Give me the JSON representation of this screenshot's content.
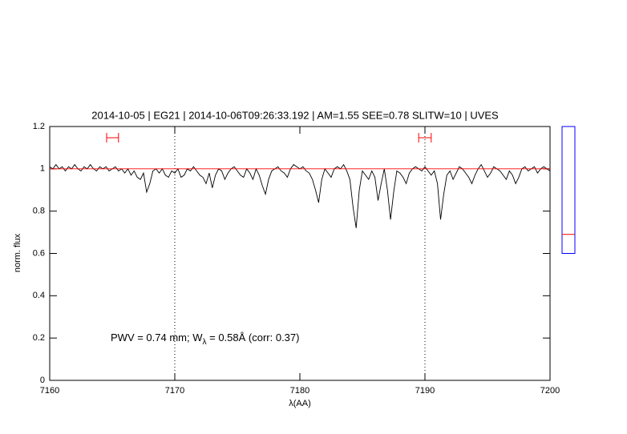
{
  "chart_data": {
    "type": "line",
    "title": "2014-10-05 | EG21 | 2014-10-06T09:26:33.192 | AM=1.55 SEE=0.78 SLITW=10 | UVES",
    "xlabel": "λ(AA)",
    "ylabel": "norm. flux",
    "annotation": [
      "PWV = 0.74 mm; W",
      "λ",
      " = 0.58Å (corr: 0.37)"
    ],
    "annotation_color": "#0000ff",
    "title_color": "#0000ff",
    "xlim": [
      7160,
      7200
    ],
    "ylim": [
      0,
      1.2
    ],
    "xticks": [
      7160,
      7170,
      7180,
      7190,
      7200
    ],
    "yticks": [
      0,
      0.2,
      0.4,
      0.6,
      0.8,
      1,
      1.2
    ],
    "vlines": [
      7170,
      7190
    ],
    "series": [
      {
        "name": "spectrum",
        "color": "#000000",
        "x": [
          7160,
          7160.25,
          7160.5,
          7160.75,
          7161,
          7161.25,
          7161.5,
          7161.75,
          7162,
          7162.25,
          7162.5,
          7162.75,
          7163,
          7163.25,
          7163.5,
          7163.75,
          7164,
          7164.25,
          7164.5,
          7164.75,
          7165,
          7165.25,
          7165.5,
          7165.75,
          7166,
          7166.25,
          7166.5,
          7166.75,
          7167,
          7167.25,
          7167.5,
          7167.75,
          7168,
          7168.25,
          7168.5,
          7168.75,
          7169,
          7169.25,
          7169.5,
          7169.75,
          7170,
          7170.25,
          7170.5,
          7170.75,
          7171,
          7171.25,
          7171.5,
          7171.75,
          7172,
          7172.25,
          7172.5,
          7172.75,
          7173,
          7173.25,
          7173.5,
          7173.75,
          7174,
          7174.25,
          7174.5,
          7174.75,
          7175,
          7175.25,
          7175.5,
          7175.75,
          7176,
          7176.25,
          7176.5,
          7176.75,
          7177,
          7177.25,
          7177.5,
          7177.75,
          7178,
          7178.25,
          7178.5,
          7178.75,
          7179,
          7179.25,
          7179.5,
          7179.75,
          7180,
          7180.25,
          7180.5,
          7180.75,
          7181,
          7181.25,
          7181.5,
          7181.75,
          7182,
          7182.25,
          7182.5,
          7182.75,
          7183,
          7183.25,
          7183.5,
          7183.75,
          7184,
          7184.25,
          7184.5,
          7184.75,
          7185,
          7185.25,
          7185.5,
          7185.75,
          7186,
          7186.25,
          7186.5,
          7186.75,
          7187,
          7187.25,
          7187.5,
          7187.75,
          7188,
          7188.25,
          7188.5,
          7188.75,
          7189,
          7189.25,
          7189.5,
          7189.75,
          7190,
          7190.25,
          7190.5,
          7190.75,
          7191,
          7191.25,
          7191.5,
          7191.75,
          7192,
          7192.25,
          7192.5,
          7192.75,
          7193,
          7193.25,
          7193.5,
          7193.75,
          7194,
          7194.25,
          7194.5,
          7194.75,
          7195,
          7195.25,
          7195.5,
          7195.75,
          7196,
          7196.25,
          7196.5,
          7196.75,
          7197,
          7197.25,
          7197.5,
          7197.75,
          7198,
          7198.25,
          7198.5,
          7198.75,
          7199,
          7199.25,
          7199.5,
          7199.75,
          7200
        ],
        "values": [
          1.01,
          1.0,
          1.02,
          1.0,
          1.01,
          0.99,
          1.01,
          1.0,
          1.02,
          1.0,
          0.99,
          1.01,
          1.0,
          1.02,
          1.0,
          0.99,
          1.01,
          1.0,
          1.01,
          0.99,
          1.0,
          1.01,
          0.99,
          1.0,
          0.98,
          1.0,
          0.97,
          0.99,
          0.96,
          0.95,
          0.98,
          0.89,
          0.93,
          0.99,
          1.0,
          0.98,
          1.0,
          0.97,
          0.96,
          0.99,
          0.98,
          1.0,
          0.96,
          0.97,
          1.0,
          0.99,
          1.01,
          0.99,
          0.97,
          0.96,
          0.93,
          0.98,
          0.91,
          0.97,
          1.0,
          0.99,
          0.95,
          0.98,
          1.0,
          1.01,
          0.99,
          0.97,
          0.96,
          1.0,
          0.98,
          0.95,
          1.0,
          0.97,
          0.92,
          0.88,
          0.95,
          0.99,
          1.0,
          1.01,
          0.99,
          0.98,
          0.96,
          1.0,
          1.02,
          1.01,
          1.0,
          1.01,
          0.99,
          0.98,
          0.95,
          0.9,
          0.84,
          0.95,
          1.0,
          0.98,
          0.96,
          1.0,
          1.01,
          1.0,
          1.02,
          0.99,
          0.95,
          0.82,
          0.72,
          0.9,
          0.99,
          0.97,
          0.95,
          0.99,
          0.96,
          0.85,
          0.93,
          1.0,
          0.9,
          0.76,
          0.89,
          0.99,
          0.98,
          0.96,
          0.93,
          0.98,
          1.0,
          1.01,
          1.0,
          0.99,
          1.01,
          0.99,
          0.97,
          0.99,
          0.93,
          0.76,
          0.88,
          0.97,
          0.99,
          0.95,
          0.98,
          1.01,
          1.0,
          0.98,
          0.96,
          0.93,
          0.97,
          1.0,
          1.02,
          0.99,
          0.96,
          0.98,
          1.01,
          1.0,
          0.99,
          0.97,
          0.95,
          0.99,
          0.97,
          0.93,
          0.96,
          1.0,
          1.01,
          0.99,
          1.0,
          1.01,
          0.98,
          1.0,
          1.01,
          1.0,
          0.99
        ]
      },
      {
        "name": "continuum",
        "color": "#ff0000",
        "x": [
          7160,
          7200
        ],
        "values": [
          1,
          1
        ]
      }
    ],
    "windows": [
      {
        "x": [
          7164.55,
          7165.5
        ],
        "y": 1.147
      },
      {
        "x": [
          7189.5,
          7190.5
        ],
        "y": 1.147
      }
    ],
    "window_color": "#ff0000",
    "gauge": {
      "range": [
        0.6,
        1.2
      ],
      "value": 0.69,
      "color": "#0000ff",
      "marker_color": "#ff0000"
    }
  }
}
